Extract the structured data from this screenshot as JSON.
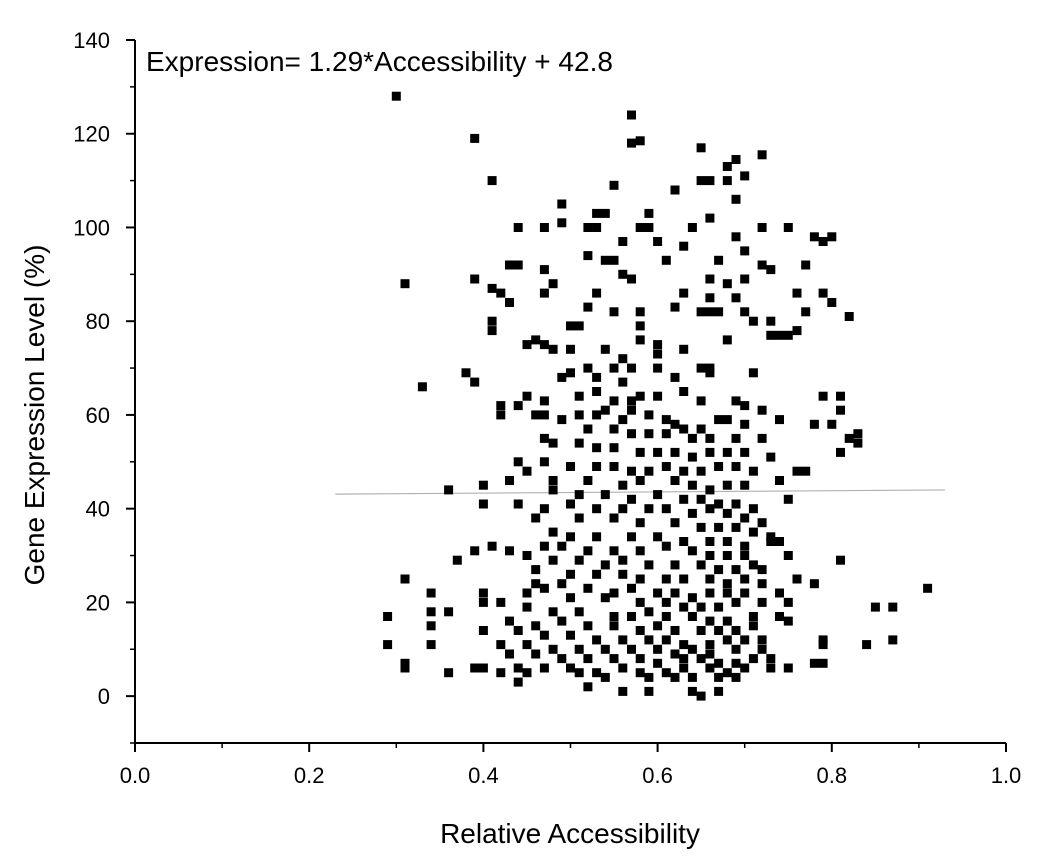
{
  "chart_data": {
    "type": "scatter",
    "annotation": "Expression= 1.29*Accessibility + 42.8",
    "xlabel": "Relative Accessibility",
    "ylabel": "Gene Expression Level (%)",
    "xlim": [
      0.0,
      1.0
    ],
    "ylim": [
      -10,
      140
    ],
    "xticks": [
      0.0,
      0.2,
      0.4,
      0.6,
      0.8,
      1.0
    ],
    "xtick_labels": [
      "0.0",
      "0.2",
      "0.4",
      "0.6",
      "0.8",
      "1.0"
    ],
    "yticks": [
      0,
      20,
      40,
      60,
      80,
      100,
      120,
      140
    ],
    "ytick_labels": [
      "0",
      "20",
      "40",
      "60",
      "80",
      "100",
      "120",
      "140"
    ],
    "grid": false,
    "colors": {
      "points": "#000000",
      "fit_line": "#b0b0b0",
      "axis": "#000000"
    },
    "fit_line": {
      "slope": 1.29,
      "intercept": 42.8,
      "x_range": [
        0.23,
        0.93
      ]
    },
    "points": [
      [
        0.3,
        128
      ],
      [
        0.57,
        124
      ],
      [
        0.57,
        118
      ],
      [
        0.58,
        118.5
      ],
      [
        0.39,
        119
      ],
      [
        0.65,
        117
      ],
      [
        0.72,
        115.5
      ],
      [
        0.69,
        114.5
      ],
      [
        0.68,
        113
      ],
      [
        0.41,
        110
      ],
      [
        0.55,
        109
      ],
      [
        0.65,
        110
      ],
      [
        0.66,
        110
      ],
      [
        0.68,
        110
      ],
      [
        0.7,
        111
      ],
      [
        0.62,
        108
      ],
      [
        0.69,
        106
      ],
      [
        0.49,
        105
      ],
      [
        0.53,
        103
      ],
      [
        0.54,
        103
      ],
      [
        0.59,
        103
      ],
      [
        0.66,
        102
      ],
      [
        0.44,
        100
      ],
      [
        0.47,
        100
      ],
      [
        0.49,
        101
      ],
      [
        0.52,
        100
      ],
      [
        0.53,
        100
      ],
      [
        0.58,
        100
      ],
      [
        0.59,
        100
      ],
      [
        0.64,
        100
      ],
      [
        0.72,
        100
      ],
      [
        0.75,
        100
      ],
      [
        0.78,
        98
      ],
      [
        0.79,
        97
      ],
      [
        0.8,
        98
      ],
      [
        0.69,
        98
      ],
      [
        0.56,
        97
      ],
      [
        0.6,
        97
      ],
      [
        0.63,
        96
      ],
      [
        0.52,
        94
      ],
      [
        0.54,
        93
      ],
      [
        0.55,
        93
      ],
      [
        0.61,
        93
      ],
      [
        0.67,
        93
      ],
      [
        0.7,
        95
      ],
      [
        0.72,
        92
      ],
      [
        0.73,
        91
      ],
      [
        0.77,
        92
      ],
      [
        0.43,
        92
      ],
      [
        0.44,
        92
      ],
      [
        0.47,
        91
      ],
      [
        0.39,
        89
      ],
      [
        0.48,
        88
      ],
      [
        0.56,
        90
      ],
      [
        0.57,
        89
      ],
      [
        0.66,
        89
      ],
      [
        0.68,
        88
      ],
      [
        0.7,
        89
      ],
      [
        0.31,
        88
      ],
      [
        0.41,
        87
      ],
      [
        0.42,
        86
      ],
      [
        0.47,
        86
      ],
      [
        0.53,
        86
      ],
      [
        0.63,
        86
      ],
      [
        0.66,
        85
      ],
      [
        0.69,
        85
      ],
      [
        0.79,
        86
      ],
      [
        0.76,
        86
      ],
      [
        0.8,
        84
      ],
      [
        0.43,
        84
      ],
      [
        0.52,
        83
      ],
      [
        0.55,
        82
      ],
      [
        0.58,
        82
      ],
      [
        0.62,
        83
      ],
      [
        0.65,
        82
      ],
      [
        0.66,
        82
      ],
      [
        0.67,
        82
      ],
      [
        0.7,
        82
      ],
      [
        0.77,
        82
      ],
      [
        0.82,
        81
      ],
      [
        0.41,
        80
      ],
      [
        0.41,
        78
      ],
      [
        0.5,
        79
      ],
      [
        0.51,
        79
      ],
      [
        0.58,
        79
      ],
      [
        0.58,
        76
      ],
      [
        0.71,
        80
      ],
      [
        0.73,
        80
      ],
      [
        0.75,
        77
      ],
      [
        0.74,
        77
      ],
      [
        0.73,
        77
      ],
      [
        0.76,
        78
      ],
      [
        0.46,
        76
      ],
      [
        0.47,
        75
      ],
      [
        0.45,
        75
      ],
      [
        0.48,
        74
      ],
      [
        0.5,
        74
      ],
      [
        0.54,
        74
      ],
      [
        0.6,
        75
      ],
      [
        0.6,
        73
      ],
      [
        0.68,
        76
      ],
      [
        0.63,
        74
      ],
      [
        0.56,
        72
      ],
      [
        0.52,
        70
      ],
      [
        0.55,
        70
      ],
      [
        0.57,
        70
      ],
      [
        0.6,
        70
      ],
      [
        0.65,
        70
      ],
      [
        0.66,
        70
      ],
      [
        0.5,
        69
      ],
      [
        0.33,
        66
      ],
      [
        0.38,
        69
      ],
      [
        0.39,
        67
      ],
      [
        0.49,
        68
      ],
      [
        0.53,
        68
      ],
      [
        0.56,
        67
      ],
      [
        0.62,
        68
      ],
      [
        0.66,
        69
      ],
      [
        0.71,
        69
      ],
      [
        0.42,
        62
      ],
      [
        0.44,
        62
      ],
      [
        0.45,
        64
      ],
      [
        0.47,
        63
      ],
      [
        0.51,
        64
      ],
      [
        0.53,
        65
      ],
      [
        0.55,
        63
      ],
      [
        0.57,
        63
      ],
      [
        0.58,
        64
      ],
      [
        0.6,
        64
      ],
      [
        0.63,
        65
      ],
      [
        0.65,
        63
      ],
      [
        0.69,
        63
      ],
      [
        0.7,
        62
      ],
      [
        0.72,
        61
      ],
      [
        0.79,
        64
      ],
      [
        0.81,
        64
      ],
      [
        0.81,
        61
      ],
      [
        0.42,
        60
      ],
      [
        0.46,
        60
      ],
      [
        0.47,
        60
      ],
      [
        0.49,
        59
      ],
      [
        0.51,
        60
      ],
      [
        0.53,
        60
      ],
      [
        0.54,
        61
      ],
      [
        0.56,
        59
      ],
      [
        0.57,
        61
      ],
      [
        0.59,
        60
      ],
      [
        0.61,
        59
      ],
      [
        0.62,
        58
      ],
      [
        0.63,
        57
      ],
      [
        0.65,
        57
      ],
      [
        0.67,
        59
      ],
      [
        0.68,
        59
      ],
      [
        0.7,
        58
      ],
      [
        0.74,
        59
      ],
      [
        0.78,
        58
      ],
      [
        0.8,
        58
      ],
      [
        0.52,
        57
      ],
      [
        0.55,
        57
      ],
      [
        0.57,
        56
      ],
      [
        0.59,
        56
      ],
      [
        0.61,
        56
      ],
      [
        0.64,
        55
      ],
      [
        0.66,
        55
      ],
      [
        0.69,
        55
      ],
      [
        0.72,
        55
      ],
      [
        0.82,
        55
      ],
      [
        0.83,
        56
      ],
      [
        0.83,
        54
      ],
      [
        0.47,
        55
      ],
      [
        0.48,
        54
      ],
      [
        0.51,
        54
      ],
      [
        0.53,
        53
      ],
      [
        0.55,
        53
      ],
      [
        0.58,
        52
      ],
      [
        0.6,
        52
      ],
      [
        0.62,
        52
      ],
      [
        0.64,
        51
      ],
      [
        0.66,
        52
      ],
      [
        0.68,
        52
      ],
      [
        0.7,
        52
      ],
      [
        0.73,
        51
      ],
      [
        0.81,
        52
      ],
      [
        0.44,
        50
      ],
      [
        0.47,
        50
      ],
      [
        0.5,
        49
      ],
      [
        0.53,
        49
      ],
      [
        0.55,
        49
      ],
      [
        0.57,
        48
      ],
      [
        0.59,
        48
      ],
      [
        0.61,
        49
      ],
      [
        0.63,
        48
      ],
      [
        0.65,
        48
      ],
      [
        0.67,
        49
      ],
      [
        0.69,
        49
      ],
      [
        0.71,
        48
      ],
      [
        0.76,
        48
      ],
      [
        0.77,
        48
      ],
      [
        0.45,
        48
      ],
      [
        0.48,
        46
      ],
      [
        0.52,
        46
      ],
      [
        0.56,
        45
      ],
      [
        0.58,
        46
      ],
      [
        0.62,
        46
      ],
      [
        0.64,
        45
      ],
      [
        0.66,
        44
      ],
      [
        0.68,
        45
      ],
      [
        0.7,
        45
      ],
      [
        0.74,
        46
      ],
      [
        0.43,
        46
      ],
      [
        0.36,
        44
      ],
      [
        0.4,
        45
      ],
      [
        0.48,
        44
      ],
      [
        0.51,
        43
      ],
      [
        0.54,
        43
      ],
      [
        0.57,
        42
      ],
      [
        0.6,
        43
      ],
      [
        0.63,
        42
      ],
      [
        0.65,
        42
      ],
      [
        0.67,
        41
      ],
      [
        0.69,
        41
      ],
      [
        0.71,
        40
      ],
      [
        0.75,
        42
      ],
      [
        0.4,
        41
      ],
      [
        0.44,
        41
      ],
      [
        0.47,
        40
      ],
      [
        0.5,
        41
      ],
      [
        0.53,
        40
      ],
      [
        0.56,
        40
      ],
      [
        0.59,
        40
      ],
      [
        0.61,
        40
      ],
      [
        0.64,
        39
      ],
      [
        0.66,
        40
      ],
      [
        0.68,
        39
      ],
      [
        0.7,
        38
      ],
      [
        0.72,
        37
      ],
      [
        0.46,
        38
      ],
      [
        0.51,
        38
      ],
      [
        0.55,
        38
      ],
      [
        0.58,
        37
      ],
      [
        0.62,
        37
      ],
      [
        0.65,
        36
      ],
      [
        0.67,
        36
      ],
      [
        0.69,
        36
      ],
      [
        0.71,
        35
      ],
      [
        0.73,
        34
      ],
      [
        0.48,
        35
      ],
      [
        0.5,
        34
      ],
      [
        0.53,
        34
      ],
      [
        0.57,
        34
      ],
      [
        0.6,
        34
      ],
      [
        0.63,
        33
      ],
      [
        0.66,
        33
      ],
      [
        0.68,
        33
      ],
      [
        0.7,
        32
      ],
      [
        0.73,
        33
      ],
      [
        0.74,
        33
      ],
      [
        0.41,
        32
      ],
      [
        0.43,
        31
      ],
      [
        0.47,
        32
      ],
      [
        0.49,
        32
      ],
      [
        0.52,
        31
      ],
      [
        0.55,
        31
      ],
      [
        0.58,
        31
      ],
      [
        0.61,
        32
      ],
      [
        0.64,
        31
      ],
      [
        0.66,
        30
      ],
      [
        0.68,
        30
      ],
      [
        0.7,
        30
      ],
      [
        0.75,
        30
      ],
      [
        0.39,
        31
      ],
      [
        0.37,
        29
      ],
      [
        0.45,
        30
      ],
      [
        0.48,
        29
      ],
      [
        0.51,
        29
      ],
      [
        0.54,
        28
      ],
      [
        0.56,
        29
      ],
      [
        0.59,
        28
      ],
      [
        0.62,
        28
      ],
      [
        0.65,
        28
      ],
      [
        0.67,
        27
      ],
      [
        0.69,
        27
      ],
      [
        0.71,
        28
      ],
      [
        0.72,
        27
      ],
      [
        0.81,
        29
      ],
      [
        0.46,
        27
      ],
      [
        0.5,
        26
      ],
      [
        0.53,
        26
      ],
      [
        0.56,
        26
      ],
      [
        0.58,
        25
      ],
      [
        0.61,
        25
      ],
      [
        0.63,
        25
      ],
      [
        0.66,
        25
      ],
      [
        0.68,
        24
      ],
      [
        0.7,
        25
      ],
      [
        0.72,
        24
      ],
      [
        0.76,
        25
      ],
      [
        0.78,
        24
      ],
      [
        0.31,
        25
      ],
      [
        0.46,
        24
      ],
      [
        0.47,
        23
      ],
      [
        0.49,
        24
      ],
      [
        0.52,
        23
      ],
      [
        0.55,
        22
      ],
      [
        0.57,
        23
      ],
      [
        0.6,
        22
      ],
      [
        0.62,
        22
      ],
      [
        0.64,
        21
      ],
      [
        0.66,
        22
      ],
      [
        0.68,
        22
      ],
      [
        0.7,
        22
      ],
      [
        0.74,
        22
      ],
      [
        0.91,
        23
      ],
      [
        0.34,
        22
      ],
      [
        0.4,
        22
      ],
      [
        0.45,
        22
      ],
      [
        0.5,
        21
      ],
      [
        0.54,
        21
      ],
      [
        0.58,
        20
      ],
      [
        0.61,
        20
      ],
      [
        0.63,
        19
      ],
      [
        0.65,
        19
      ],
      [
        0.67,
        19
      ],
      [
        0.69,
        20
      ],
      [
        0.72,
        20
      ],
      [
        0.75,
        20
      ],
      [
        0.34,
        18
      ],
      [
        0.36,
        18
      ],
      [
        0.29,
        17
      ],
      [
        0.4,
        20
      ],
      [
        0.42,
        20
      ],
      [
        0.45,
        19
      ],
      [
        0.48,
        18
      ],
      [
        0.51,
        18
      ],
      [
        0.55,
        17
      ],
      [
        0.57,
        17
      ],
      [
        0.59,
        18
      ],
      [
        0.61,
        17
      ],
      [
        0.64,
        17
      ],
      [
        0.66,
        16
      ],
      [
        0.68,
        16
      ],
      [
        0.71,
        17
      ],
      [
        0.74,
        17
      ],
      [
        0.85,
        19
      ],
      [
        0.87,
        19
      ],
      [
        0.34,
        15
      ],
      [
        0.43,
        16
      ],
      [
        0.46,
        15
      ],
      [
        0.49,
        16
      ],
      [
        0.52,
        15
      ],
      [
        0.55,
        15
      ],
      [
        0.58,
        14
      ],
      [
        0.6,
        15
      ],
      [
        0.62,
        14
      ],
      [
        0.65,
        14
      ],
      [
        0.67,
        14
      ],
      [
        0.69,
        14
      ],
      [
        0.71,
        15
      ],
      [
        0.75,
        16
      ],
      [
        0.4,
        14
      ],
      [
        0.44,
        14
      ],
      [
        0.47,
        13
      ],
      [
        0.5,
        13
      ],
      [
        0.53,
        12
      ],
      [
        0.56,
        12
      ],
      [
        0.59,
        12
      ],
      [
        0.61,
        12
      ],
      [
        0.63,
        11
      ],
      [
        0.66,
        11
      ],
      [
        0.68,
        12
      ],
      [
        0.7,
        12
      ],
      [
        0.72,
        12
      ],
      [
        0.79,
        12
      ],
      [
        0.87,
        12
      ],
      [
        0.29,
        11
      ],
      [
        0.34,
        11
      ],
      [
        0.42,
        11
      ],
      [
        0.45,
        11
      ],
      [
        0.48,
        10
      ],
      [
        0.51,
        10
      ],
      [
        0.54,
        10
      ],
      [
        0.57,
        10
      ],
      [
        0.6,
        10
      ],
      [
        0.62,
        9
      ],
      [
        0.64,
        10
      ],
      [
        0.66,
        9
      ],
      [
        0.69,
        10
      ],
      [
        0.72,
        10
      ],
      [
        0.79,
        11
      ],
      [
        0.84,
        11
      ],
      [
        0.43,
        9
      ],
      [
        0.46,
        9
      ],
      [
        0.49,
        8
      ],
      [
        0.52,
        8
      ],
      [
        0.55,
        8
      ],
      [
        0.58,
        8
      ],
      [
        0.6,
        7
      ],
      [
        0.63,
        8
      ],
      [
        0.65,
        8
      ],
      [
        0.67,
        7
      ],
      [
        0.69,
        7
      ],
      [
        0.71,
        8
      ],
      [
        0.73,
        8
      ],
      [
        0.78,
        7
      ],
      [
        0.79,
        7
      ],
      [
        0.31,
        7
      ],
      [
        0.31,
        6
      ],
      [
        0.39,
        6
      ],
      [
        0.4,
        6
      ],
      [
        0.44,
        6
      ],
      [
        0.47,
        6
      ],
      [
        0.5,
        6
      ],
      [
        0.53,
        5
      ],
      [
        0.56,
        6
      ],
      [
        0.58,
        5
      ],
      [
        0.61,
        5
      ],
      [
        0.63,
        6
      ],
      [
        0.66,
        6
      ],
      [
        0.68,
        5
      ],
      [
        0.7,
        6
      ],
      [
        0.73,
        6
      ],
      [
        0.75,
        6
      ],
      [
        0.36,
        5
      ],
      [
        0.42,
        5
      ],
      [
        0.45,
        5
      ],
      [
        0.51,
        5
      ],
      [
        0.54,
        4
      ],
      [
        0.59,
        4
      ],
      [
        0.62,
        4
      ],
      [
        0.64,
        4
      ],
      [
        0.67,
        4
      ],
      [
        0.69,
        4
      ],
      [
        0.44,
        3
      ],
      [
        0.52,
        2
      ],
      [
        0.56,
        1
      ],
      [
        0.59,
        1
      ],
      [
        0.64,
        1
      ],
      [
        0.65,
        0
      ],
      [
        0.67,
        1
      ]
    ]
  }
}
